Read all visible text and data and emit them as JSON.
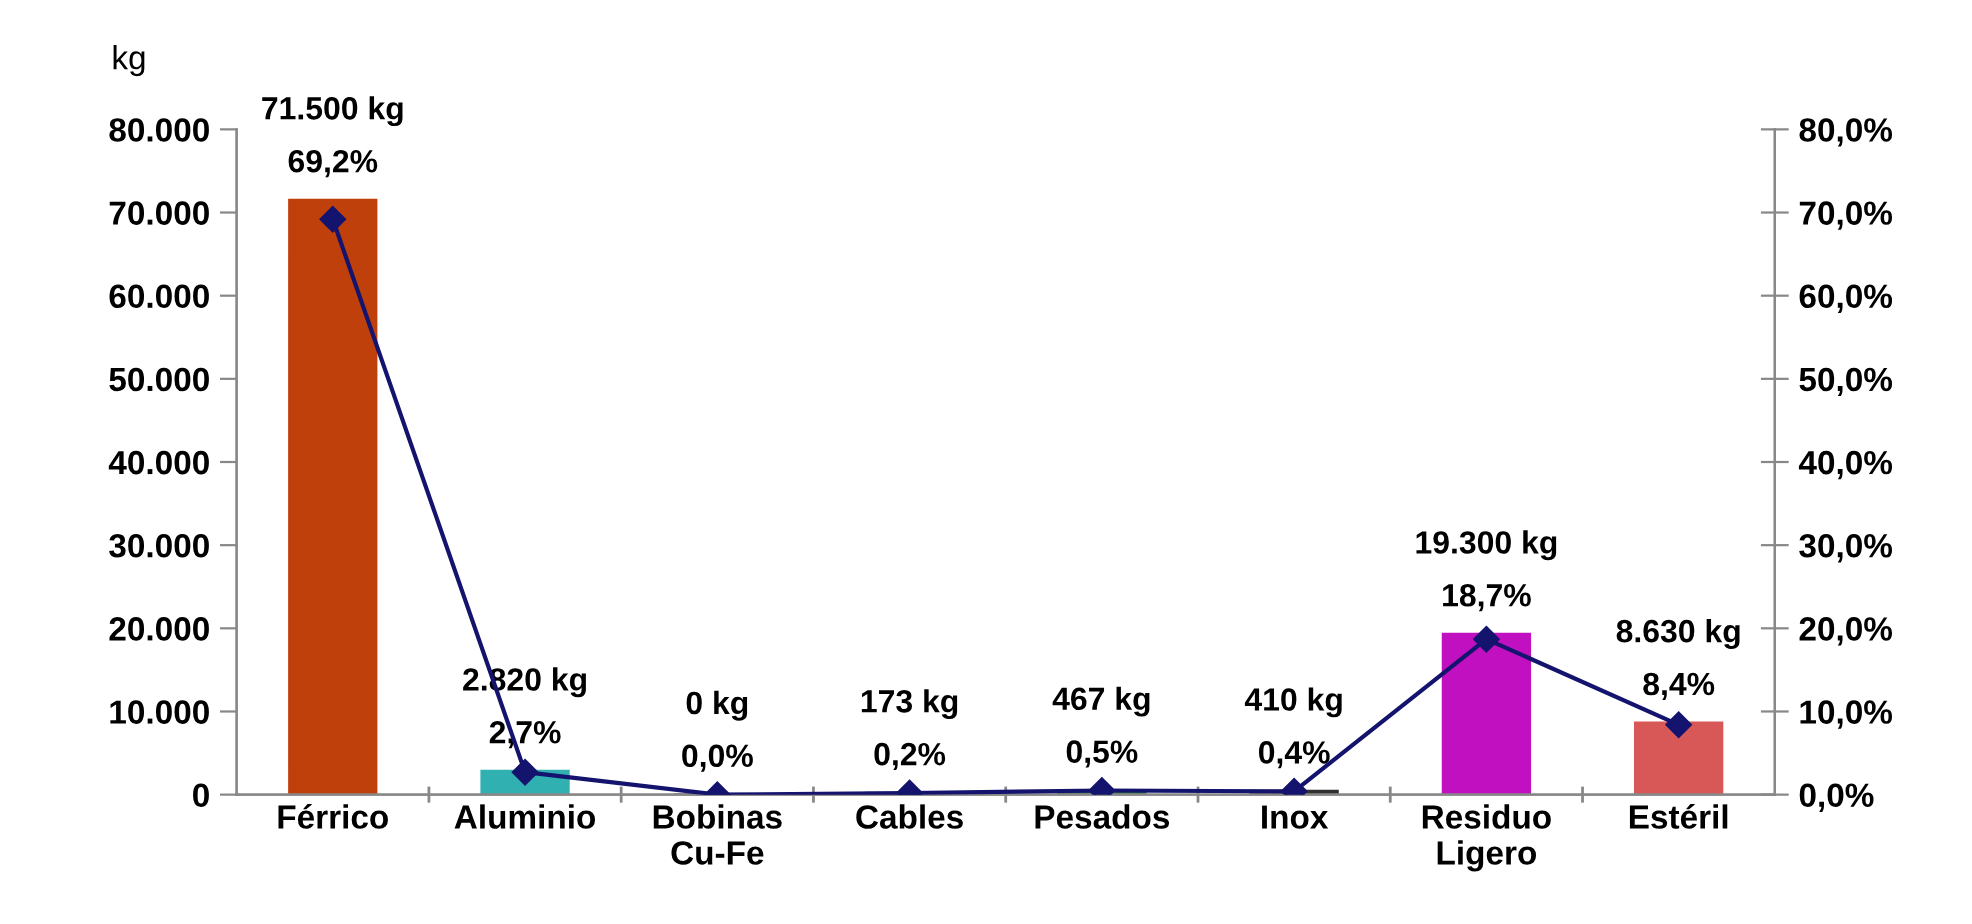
{
  "chart_data": {
    "type": "bar",
    "ylabel": "kg",
    "categories": [
      "Férrico",
      "Aluminio",
      "Bobinas\nCu-Fe",
      "Cables",
      "Pesados",
      "Inox",
      "Residuo\nLigero",
      "Estéril"
    ],
    "series": [
      {
        "colors": [
          "#c0400c",
          "#30b0b0",
          "#606060",
          "#2a5a2a",
          "#2f7a3a",
          "#303030",
          "#c010c0",
          "#d85858"
        ],
        "values": [
          71500,
          2820,
          0,
          173,
          467,
          410,
          19300,
          8630
        ],
        "value_labels": [
          "71.500 kg",
          "2.820 kg",
          "0 kg",
          "173 kg",
          "467 kg",
          "410 kg",
          "19.300 kg",
          "8.630 kg"
        ]
      },
      {
        "type": "line",
        "axis": "y2",
        "color": "#14146e",
        "marker": "diamond",
        "line_style": "solid",
        "values": [
          69.2,
          2.7,
          0.0,
          0.2,
          0.5,
          0.4,
          18.7,
          8.4
        ],
        "value_labels": [
          "69,2%",
          "2,7%",
          "0,0%",
          "0,2%",
          "0,5%",
          "0,4%",
          "18,7%",
          "8,4%"
        ]
      }
    ],
    "ylim": [
      0,
      80000
    ],
    "yticks": [
      {
        "value": 0,
        "label": "0"
      },
      {
        "value": 10000,
        "label": "10.000"
      },
      {
        "value": 20000,
        "label": "20.000"
      },
      {
        "value": 30000,
        "label": "30.000"
      },
      {
        "value": 40000,
        "label": "40.000"
      },
      {
        "value": 50000,
        "label": "50.000"
      },
      {
        "value": 60000,
        "label": "60.000"
      },
      {
        "value": 70000,
        "label": "70.000"
      },
      {
        "value": 80000,
        "label": "80.000"
      }
    ],
    "y2lim": [
      0,
      80
    ],
    "y2ticks": [
      {
        "value": 0,
        "label": "0,0%"
      },
      {
        "value": 10,
        "label": "10,0%"
      },
      {
        "value": 20,
        "label": "20,0%"
      },
      {
        "value": 30,
        "label": "30,0%"
      },
      {
        "value": 40,
        "label": "40,0%"
      },
      {
        "value": 50,
        "label": "50,0%"
      },
      {
        "value": 60,
        "label": "60,0%"
      },
      {
        "value": 70,
        "label": "70,0%"
      },
      {
        "value": 80,
        "label": "80,0%"
      }
    ],
    "grid": false,
    "legend": false
  }
}
